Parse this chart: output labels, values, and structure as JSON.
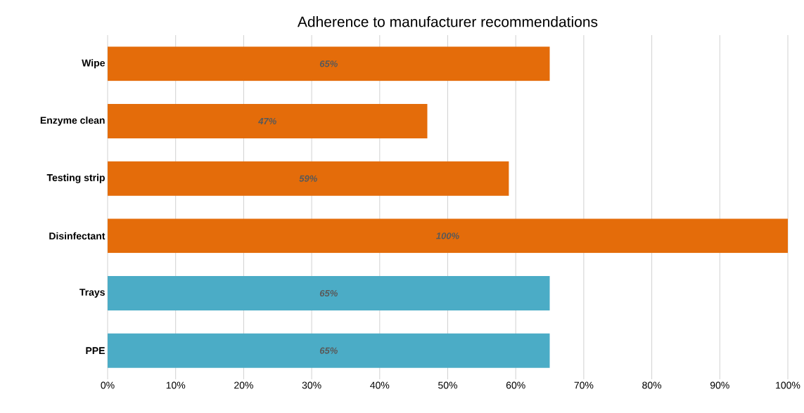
{
  "chart_data": {
    "type": "bar",
    "orientation": "horizontal",
    "title": "Adherence to manufacturer recommendations",
    "categories": [
      "Wipe",
      "Enzyme clean",
      "Testing strip",
      "Disinfectant",
      "Trays",
      "PPE"
    ],
    "values": [
      65,
      47,
      59,
      100,
      65,
      65
    ],
    "colors": [
      "#e46c0a",
      "#e46c0a",
      "#e46c0a",
      "#e46c0a",
      "#4bacc6",
      "#4bacc6"
    ],
    "value_labels": [
      "65%",
      "47%",
      "59%",
      "100%",
      "65%",
      "65%"
    ],
    "xlim": [
      0,
      100
    ],
    "xticks": [
      {
        "value": 0,
        "label": "0%"
      },
      {
        "value": 10,
        "label": "10%"
      },
      {
        "value": 20,
        "label": "20%"
      },
      {
        "value": 30,
        "label": "30%"
      },
      {
        "value": 40,
        "label": "40%"
      },
      {
        "value": 50,
        "label": "50%"
      },
      {
        "value": 60,
        "label": "60%"
      },
      {
        "value": 70,
        "label": "70%"
      },
      {
        "value": 80,
        "label": "80%"
      },
      {
        "value": 90,
        "label": "90%"
      },
      {
        "value": 100,
        "label": "100%"
      }
    ],
    "grid": "x"
  }
}
